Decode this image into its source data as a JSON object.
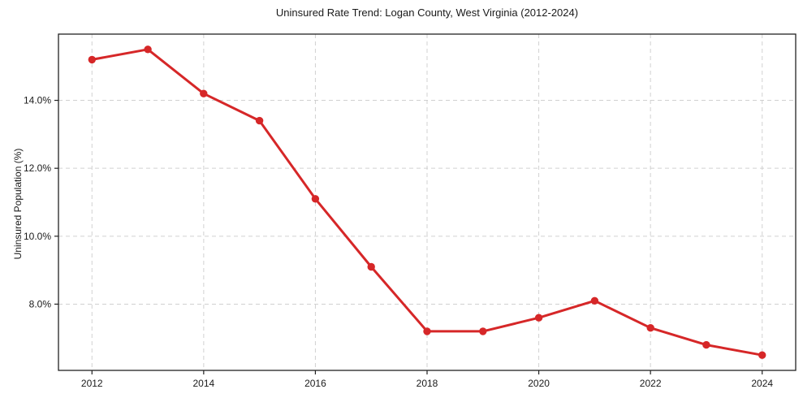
{
  "title": "Uninsured Rate Trend: Logan County, West Virginia (2012-2024)",
  "chart_data": {
    "type": "line",
    "title": "Uninsured Rate Trend: Logan County, West Virginia (2012-2024)",
    "xlabel": "",
    "ylabel": "Uninsured Population (%)",
    "x": [
      2012,
      2013,
      2014,
      2015,
      2016,
      2017,
      2018,
      2019,
      2020,
      2021,
      2022,
      2023,
      2024
    ],
    "values": [
      15.2,
      15.5,
      14.2,
      13.4,
      11.1,
      9.1,
      7.2,
      7.2,
      7.6,
      8.1,
      7.3,
      6.8,
      6.5
    ],
    "series_name": "Uninsured rate",
    "xlim": [
      2011.4,
      2024.6
    ],
    "ylim": [
      6.05,
      15.95
    ],
    "x_ticks": [
      2012,
      2014,
      2016,
      2018,
      2020,
      2022,
      2024
    ],
    "x_tick_labels": [
      "2012",
      "2014",
      "2016",
      "2018",
      "2020",
      "2022",
      "2024"
    ],
    "y_ticks": [
      8,
      10,
      12,
      14
    ],
    "y_tick_labels": [
      "8.0%",
      "10.0%",
      "12.0%",
      "14.0%"
    ],
    "grid": true,
    "legend": "none",
    "line_color": "#d62728",
    "marker": "circle",
    "grid_color": "#c9c9c9",
    "spine_color": "#222222",
    "background_color": "#ffffff"
  }
}
